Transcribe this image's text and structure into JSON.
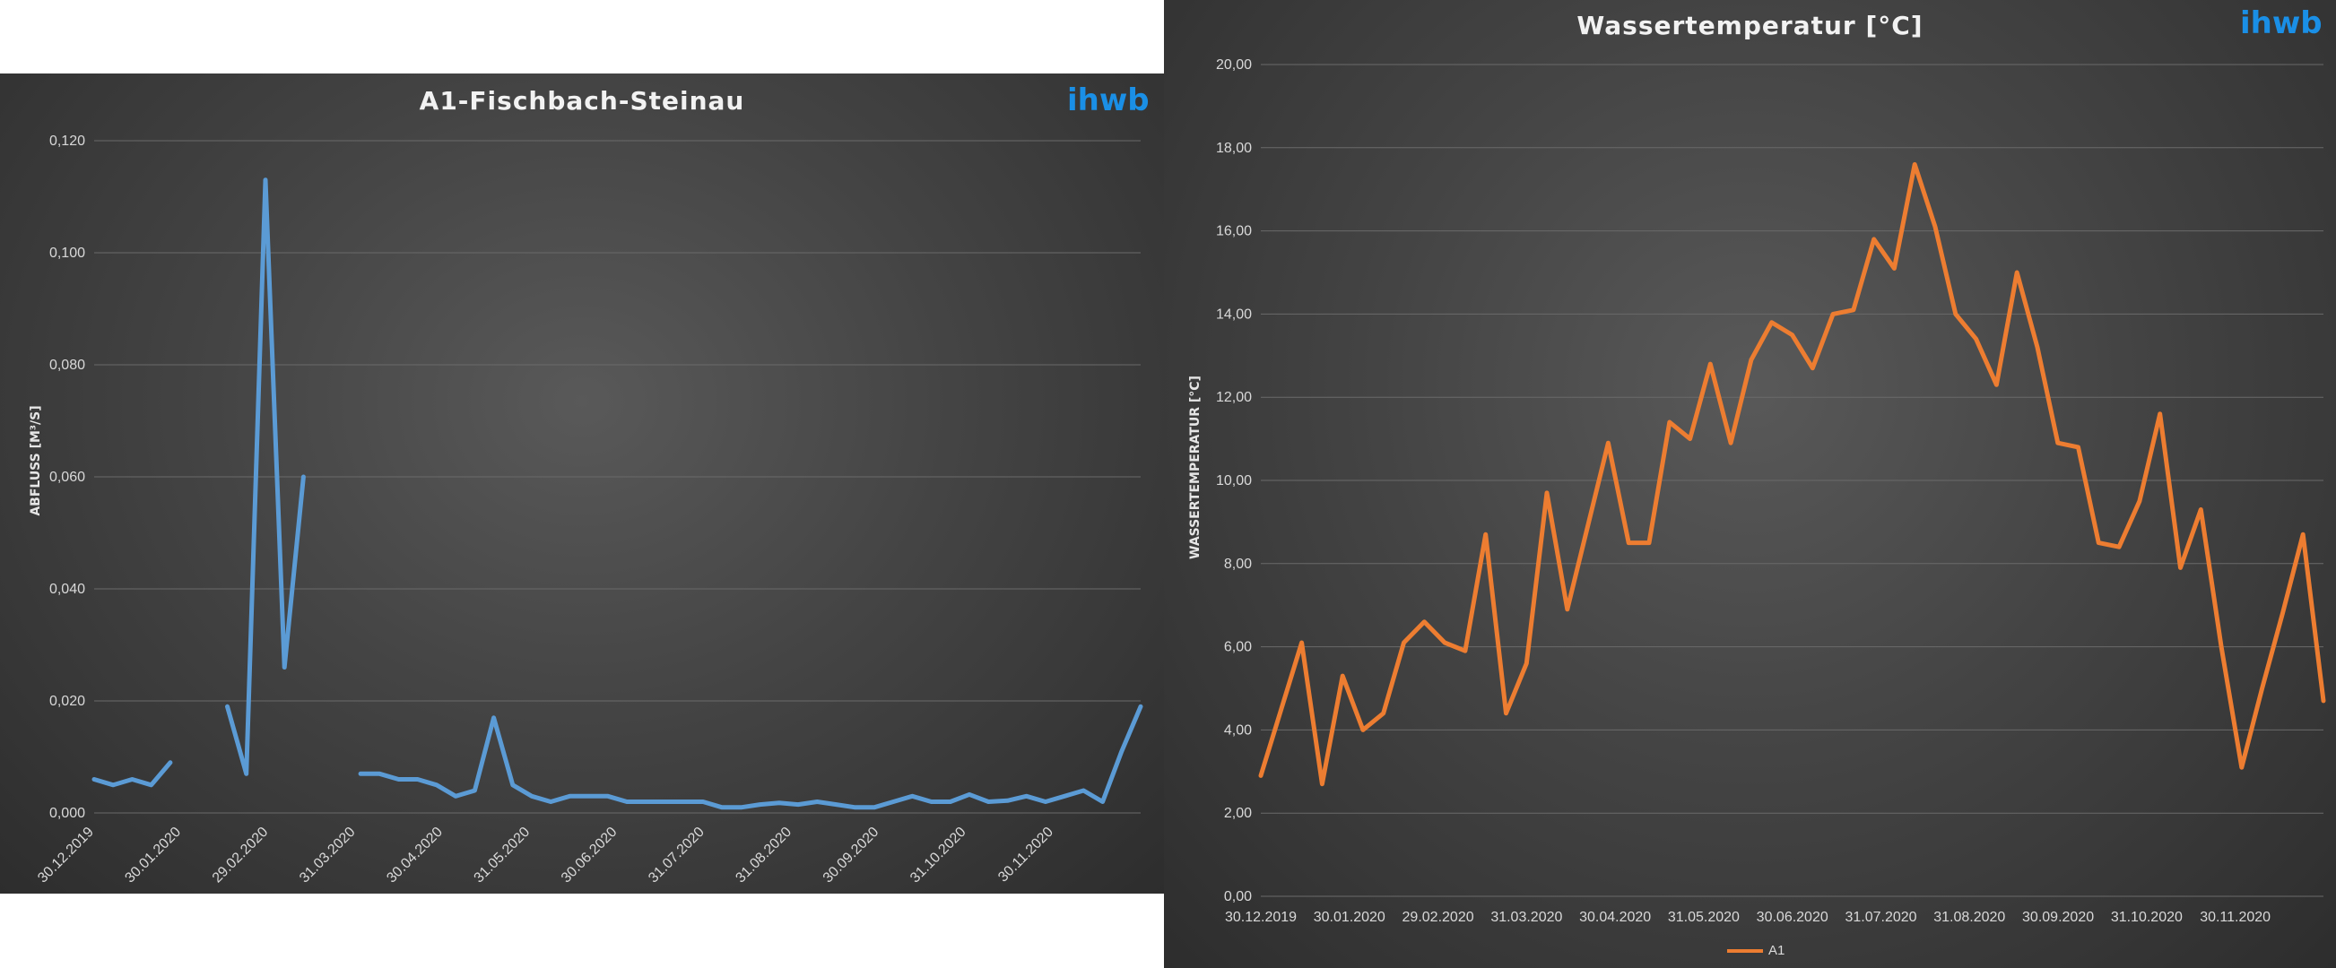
{
  "chart_data": [
    {
      "type": "line",
      "title": "A1-Fischbach-Steinau",
      "brand": "ihwb",
      "xlabel": "",
      "ylabel": "ABFLUSS [M³/S]",
      "ylim": [
        0,
        0.12
      ],
      "yticks": [
        "0,000",
        "0,020",
        "0,040",
        "0,060",
        "0,080",
        "0,100",
        "0,120"
      ],
      "xticks": [
        "30.12.2019",
        "30.01.2020",
        "29.02.2020",
        "31.03.2020",
        "30.04.2020",
        "31.05.2020",
        "30.06.2020",
        "31.07.2020",
        "31.08.2020",
        "30.09.2020",
        "31.10.2020",
        "30.11.2020"
      ],
      "series": [
        {
          "color": "#5b9bd5",
          "values": [
            0.006,
            0.005,
            0.006,
            0.005,
            0.009,
            null,
            null,
            0.019,
            0.007,
            0.113,
            0.026,
            0.06,
            null,
            null,
            0.007,
            0.007,
            0.006,
            0.006,
            0.005,
            0.003,
            0.004,
            0.017,
            0.005,
            0.003,
            0.002,
            0.003,
            0.003,
            0.003,
            0.002,
            0.002,
            0.002,
            0.002,
            0.002,
            0.001,
            0.001,
            0.0015,
            0.0018,
            0.0015,
            0.002,
            0.0015,
            0.001,
            0.001,
            0.002,
            0.003,
            0.002,
            0.002,
            0.0033,
            0.002,
            0.0022,
            0.003,
            0.002,
            0.003,
            0.004,
            0.002,
            0.011,
            0.019
          ]
        }
      ]
    },
    {
      "type": "line",
      "title": "Wassertemperatur [°C]",
      "brand": "ihwb",
      "xlabel": "",
      "ylabel": "WASSERTEMPERATUR [°C]",
      "ylim": [
        0,
        20
      ],
      "yticks": [
        "0,00",
        "2,00",
        "4,00",
        "6,00",
        "8,00",
        "10,00",
        "12,00",
        "14,00",
        "16,00",
        "18,00",
        "20,00"
      ],
      "xticks": [
        "30.12.2019",
        "30.01.2020",
        "29.02.2020",
        "31.03.2020",
        "30.04.2020",
        "31.05.2020",
        "30.06.2020",
        "31.07.2020",
        "31.08.2020",
        "30.09.2020",
        "31.10.2020",
        "30.11.2020"
      ],
      "legend": "A1",
      "series": [
        {
          "name": "A1",
          "color": "#ed7d31",
          "values": [
            2.9,
            4.5,
            6.1,
            2.7,
            5.3,
            4.0,
            4.4,
            6.1,
            6.6,
            6.1,
            5.9,
            8.7,
            4.4,
            5.6,
            9.7,
            6.9,
            8.9,
            10.9,
            8.5,
            8.5,
            11.4,
            11.0,
            12.8,
            10.9,
            12.9,
            13.8,
            13.5,
            12.7,
            14.0,
            14.1,
            15.8,
            15.1,
            17.6,
            16.1,
            14.0,
            13.4,
            12.3,
            15.0,
            13.2,
            10.9,
            10.8,
            8.5,
            8.4,
            9.5,
            11.6,
            7.9,
            9.3,
            6.0,
            3.1,
            5.0,
            6.8,
            8.7,
            4.7
          ]
        }
      ]
    }
  ]
}
